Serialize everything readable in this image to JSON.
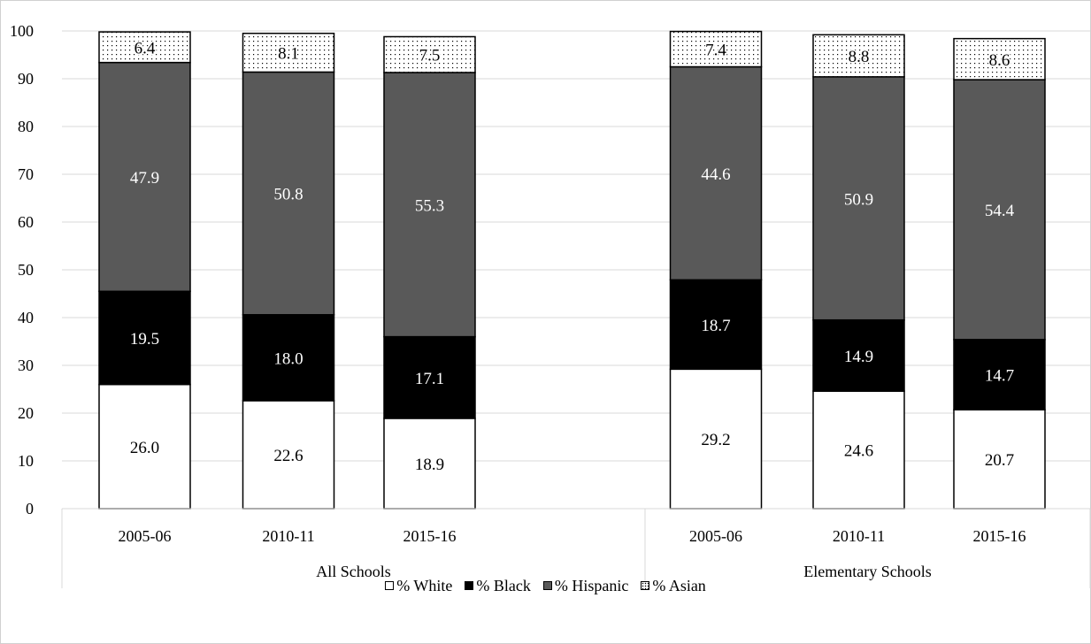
{
  "chart_data": {
    "type": "bar",
    "stacked": true,
    "ylim": [
      0,
      100
    ],
    "yticks": [
      0,
      10,
      20,
      30,
      40,
      50,
      60,
      70,
      80,
      90,
      100
    ],
    "grid": true,
    "legend_position": "bottom",
    "groups": [
      {
        "label": "All Schools",
        "categories": [
          "2005-06",
          "2010-11",
          "2015-16"
        ]
      },
      {
        "label": "Elementary Schools",
        "categories": [
          "2005-06",
          "2010-11",
          "2015-16"
        ]
      }
    ],
    "categories": [
      "2005-06",
      "2010-11",
      "2015-16",
      "2005-06",
      "2010-11",
      "2015-16"
    ],
    "series": [
      {
        "name": "% White",
        "color": "#ffffff",
        "label_color": "#000000",
        "fill": "solid",
        "values": [
          26.0,
          22.6,
          18.9,
          29.2,
          24.6,
          20.7
        ],
        "labels": [
          "26.0",
          "22.6",
          "18.9",
          "29.2",
          "24.6",
          "20.7"
        ]
      },
      {
        "name": "% Black",
        "color": "#000000",
        "label_color": "#ffffff",
        "fill": "solid",
        "values": [
          19.5,
          18.0,
          17.1,
          18.7,
          14.9,
          14.7
        ],
        "labels": [
          "19.5",
          "18.0",
          "17.1",
          "18.7",
          "14.9",
          "14.7"
        ]
      },
      {
        "name": "% Hispanic",
        "color": "#595959",
        "label_color": "#ffffff",
        "fill": "solid",
        "values": [
          47.9,
          50.8,
          55.3,
          44.6,
          50.9,
          54.4
        ],
        "labels": [
          "47.9",
          "50.8",
          "55.3",
          "44.6",
          "50.9",
          "54.4"
        ]
      },
      {
        "name": "% Asian",
        "color": "#ffffff",
        "label_color": "#000000",
        "fill": "dotted",
        "values": [
          6.4,
          8.1,
          7.5,
          7.4,
          8.8,
          8.6
        ],
        "labels": [
          "6.4",
          "8.1",
          "7.5",
          "7.4",
          "8.8",
          "8.6"
        ]
      }
    ]
  }
}
